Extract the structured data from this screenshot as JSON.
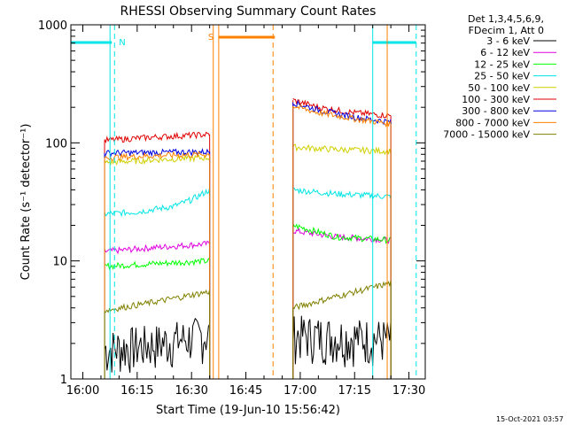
{
  "chart_data": {
    "type": "line",
    "title": "RHESSI Observing Summary Count Rates",
    "xlabel": "Start Time (19-Jun-10 15:56:42)",
    "ylabel": "Count Rate (s⁻¹ detector⁻¹)",
    "y_scale": "log",
    "ylim": [
      1,
      1000
    ],
    "xlim": [
      "15:56:42",
      "17:34:30"
    ],
    "x_ticks": [
      "16:00",
      "16:15",
      "16:30",
      "16:45",
      "17:00",
      "17:15",
      "17:30"
    ],
    "y_ticks": [
      "1",
      "10",
      "100",
      "1000"
    ],
    "legend_header": [
      "Det 1,3,4,5,6,9,",
      "FDecim 1, Att 0"
    ],
    "legend_position": "right",
    "footer_date": "15-Oct-2021 03:57",
    "series": [
      {
        "name": "3 - 6 keV",
        "color": "#000000",
        "segments": [
          {
            "t": [
              "16:06:00",
              "16:20:00",
              "16:35:00"
            ],
            "v": [
              1.8,
              2.0,
              2.4
            ]
          },
          {
            "t": [
              "16:58:00",
              "17:10:00",
              "17:25:00"
            ],
            "v": [
              2.4,
              2.3,
              2.2
            ]
          }
        ]
      },
      {
        "name": "6 - 12 keV",
        "color": "#e000e0",
        "segments": [
          {
            "t": [
              "16:06:00",
              "16:20:00",
              "16:35:00"
            ],
            "v": [
              12,
              13,
              14
            ]
          },
          {
            "t": [
              "16:58:00",
              "17:10:00",
              "17:25:00"
            ],
            "v": [
              18,
              16,
              15
            ]
          }
        ]
      },
      {
        "name": "12 - 25 keV",
        "color": "#00ff00",
        "segments": [
          {
            "t": [
              "16:06:00",
              "16:20:00",
              "16:35:00"
            ],
            "v": [
              9,
              9.5,
              10
            ]
          },
          {
            "t": [
              "16:58:00",
              "17:10:00",
              "17:25:00"
            ],
            "v": [
              20,
              16,
              15
            ]
          }
        ]
      },
      {
        "name": "25 - 50 keV",
        "color": "#00e5e5",
        "segments": [
          {
            "t": [
              "16:06:00",
              "16:15:00",
              "16:25:00",
              "16:30:00",
              "16:35:00"
            ],
            "v": [
              25,
              26,
              29,
              33,
              40
            ]
          },
          {
            "t": [
              "16:58:00",
              "17:10:00",
              "17:25:00"
            ],
            "v": [
              40,
              37,
              35
            ]
          }
        ]
      },
      {
        "name": "50 - 100 keV",
        "color": "#d0d000",
        "segments": [
          {
            "t": [
              "16:06:00",
              "16:20:00",
              "16:35:00"
            ],
            "v": [
              68,
              72,
              75
            ]
          },
          {
            "t": [
              "16:58:00",
              "17:10:00",
              "17:25:00"
            ],
            "v": [
              92,
              88,
              85
            ]
          }
        ]
      },
      {
        "name": "100 - 300 keV",
        "color": "#e00000",
        "segments": [
          {
            "t": [
              "16:06:00",
              "16:20:00",
              "16:35:00"
            ],
            "v": [
              105,
              112,
              118
            ]
          },
          {
            "t": [
              "16:58:00",
              "17:05:00",
              "17:15:00",
              "17:25:00"
            ],
            "v": [
              230,
              200,
              180,
              170
            ]
          }
        ]
      },
      {
        "name": "300 - 800 keV",
        "color": "#0000e0",
        "segments": [
          {
            "t": [
              "16:06:00",
              "16:20:00",
              "16:35:00"
            ],
            "v": [
              82,
              83,
              84
            ]
          },
          {
            "t": [
              "16:58:00",
              "17:05:00",
              "17:15:00",
              "17:25:00"
            ],
            "v": [
              220,
              190,
              165,
              150
            ]
          }
        ]
      },
      {
        "name": "800 - 7000 keV",
        "color": "#ff8000",
        "segments": [
          {
            "t": [
              "16:06:00",
              "16:20:00",
              "16:35:00"
            ],
            "v": [
              75,
              78,
              80
            ]
          },
          {
            "t": [
              "16:58:00",
              "17:05:00",
              "17:15:00",
              "17:25:00"
            ],
            "v": [
              205,
              180,
              160,
              145
            ]
          }
        ]
      },
      {
        "name": "7000 - 15000 keV",
        "color": "#808000",
        "segments": [
          {
            "t": [
              "16:06:00",
              "16:20:00",
              "16:35:00"
            ],
            "v": [
              3.8,
              4.5,
              5.5
            ]
          },
          {
            "t": [
              "16:58:00",
              "17:10:00",
              "17:25:00"
            ],
            "v": [
              4.0,
              5.0,
              6.5
            ]
          }
        ]
      }
    ],
    "annotations": {
      "night_label": "N",
      "saa_label": "S",
      "night_color": "#00e5e5",
      "saa_color": "#ff8000",
      "night_bars": [
        [
          "15:56:42",
          "16:08:00"
        ],
        [
          "17:20:00",
          "17:32:00"
        ]
      ],
      "saa_bars": [
        [
          "16:37:30",
          "16:53:00"
        ]
      ],
      "night_lines_solid": [
        "16:07:30",
        "17:20:00"
      ],
      "night_lines_dashed": [
        "16:08:45",
        "17:32:00"
      ],
      "saa_lines_solid": [
        "16:37:30"
      ],
      "saa_lines_dashed": [
        "16:52:30"
      ],
      "attenuator_lines_solid": [
        "16:36:00",
        "17:24:00"
      ]
    }
  }
}
